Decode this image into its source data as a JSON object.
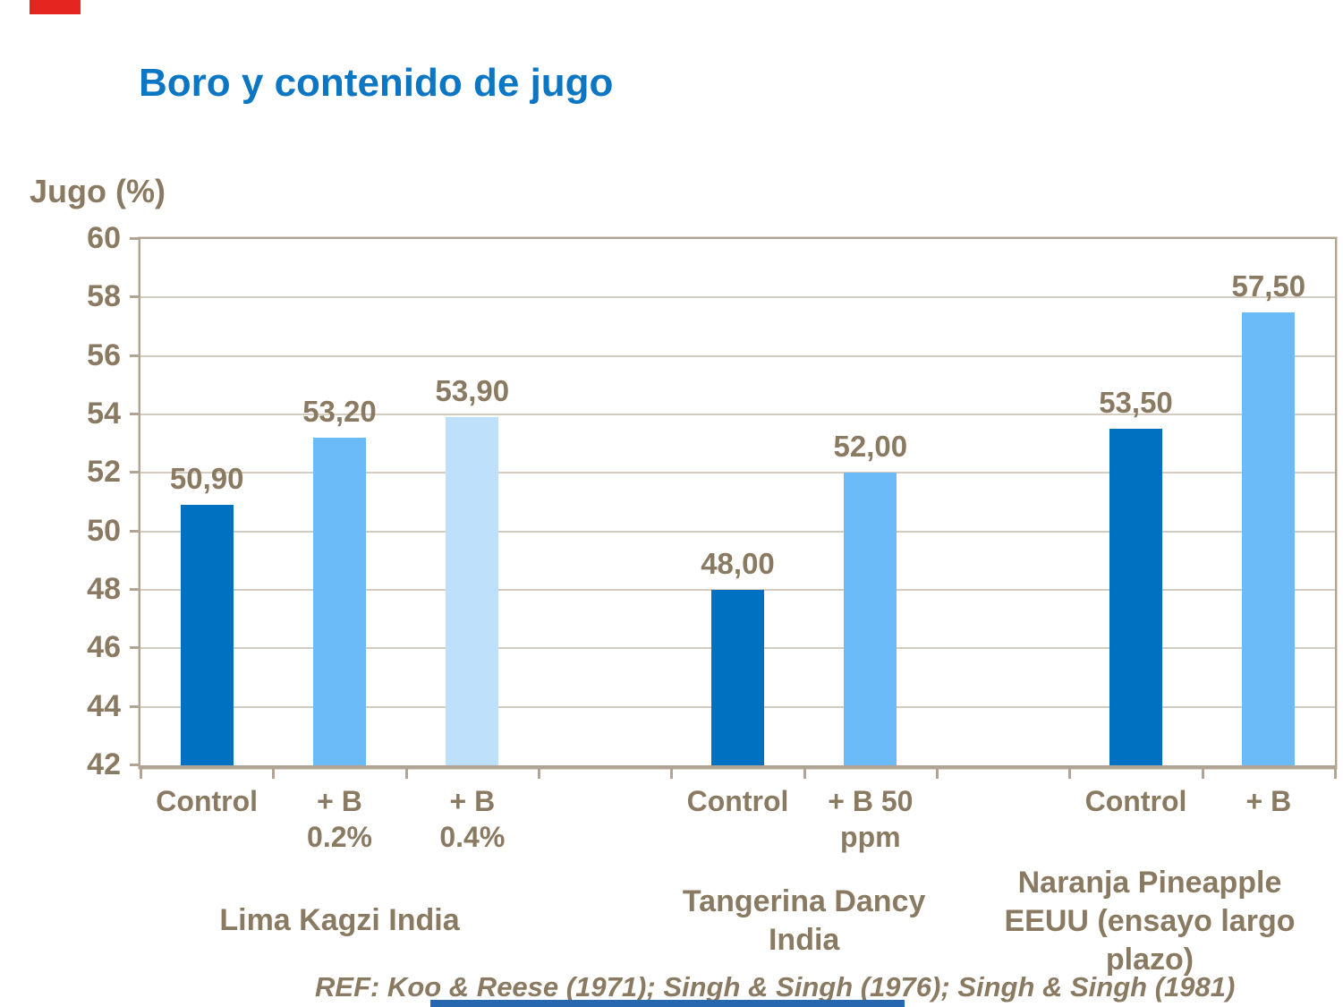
{
  "slide": {
    "title": "Boro y contenido de jugo",
    "title_color": "#0b76c4",
    "ref_text": "REF: Koo & Reese (1971); Singh & Singh (1976); Singh & Singh (1981)",
    "text_color": "#8a7a62",
    "accents": {
      "top_left_color": "#e52620",
      "bottom_color": "#2767b0"
    }
  },
  "chart_data": {
    "type": "bar",
    "title": "Boro y contenido de jugo",
    "xlabel": "",
    "ylabel": "Jugo (%)",
    "ylim": [
      42,
      60
    ],
    "ytick_step": 2,
    "grid": true,
    "legend": false,
    "grid_color": "#d5ccc0",
    "axis_color": "#b1a495",
    "label_color": "#8a7a62",
    "bar_colors": {
      "dark_blue": "#0071c0",
      "medium_blue": "#6bbbf8",
      "light_blue": "#bfe0fb"
    },
    "groups": [
      {
        "label": "Lima Kagzi India",
        "bars": [
          {
            "category": "Control",
            "value": 50.9,
            "value_label": "50,90",
            "color": "dark_blue"
          },
          {
            "category": "+ B\n0.2%",
            "value": 53.2,
            "value_label": "53,20",
            "color": "medium_blue"
          },
          {
            "category": "+ B\n0.4%",
            "value": 53.9,
            "value_label": "53,90",
            "color": "light_blue"
          }
        ]
      },
      {
        "label": "Tangerina Dancy\nIndia",
        "bars": [
          {
            "category": "Control",
            "value": 48.0,
            "value_label": "48,00",
            "color": "dark_blue"
          },
          {
            "category": "+ B 50\nppm",
            "value": 52.0,
            "value_label": "52,00",
            "color": "medium_blue"
          }
        ]
      },
      {
        "label": "Naranja Pineapple\nEEUU (ensayo largo\nplazo)",
        "bars": [
          {
            "category": "Control",
            "value": 53.5,
            "value_label": "53,50",
            "color": "dark_blue"
          },
          {
            "category": "+ B",
            "value": 57.5,
            "value_label": "57,50",
            "color": "medium_blue"
          }
        ]
      }
    ]
  }
}
